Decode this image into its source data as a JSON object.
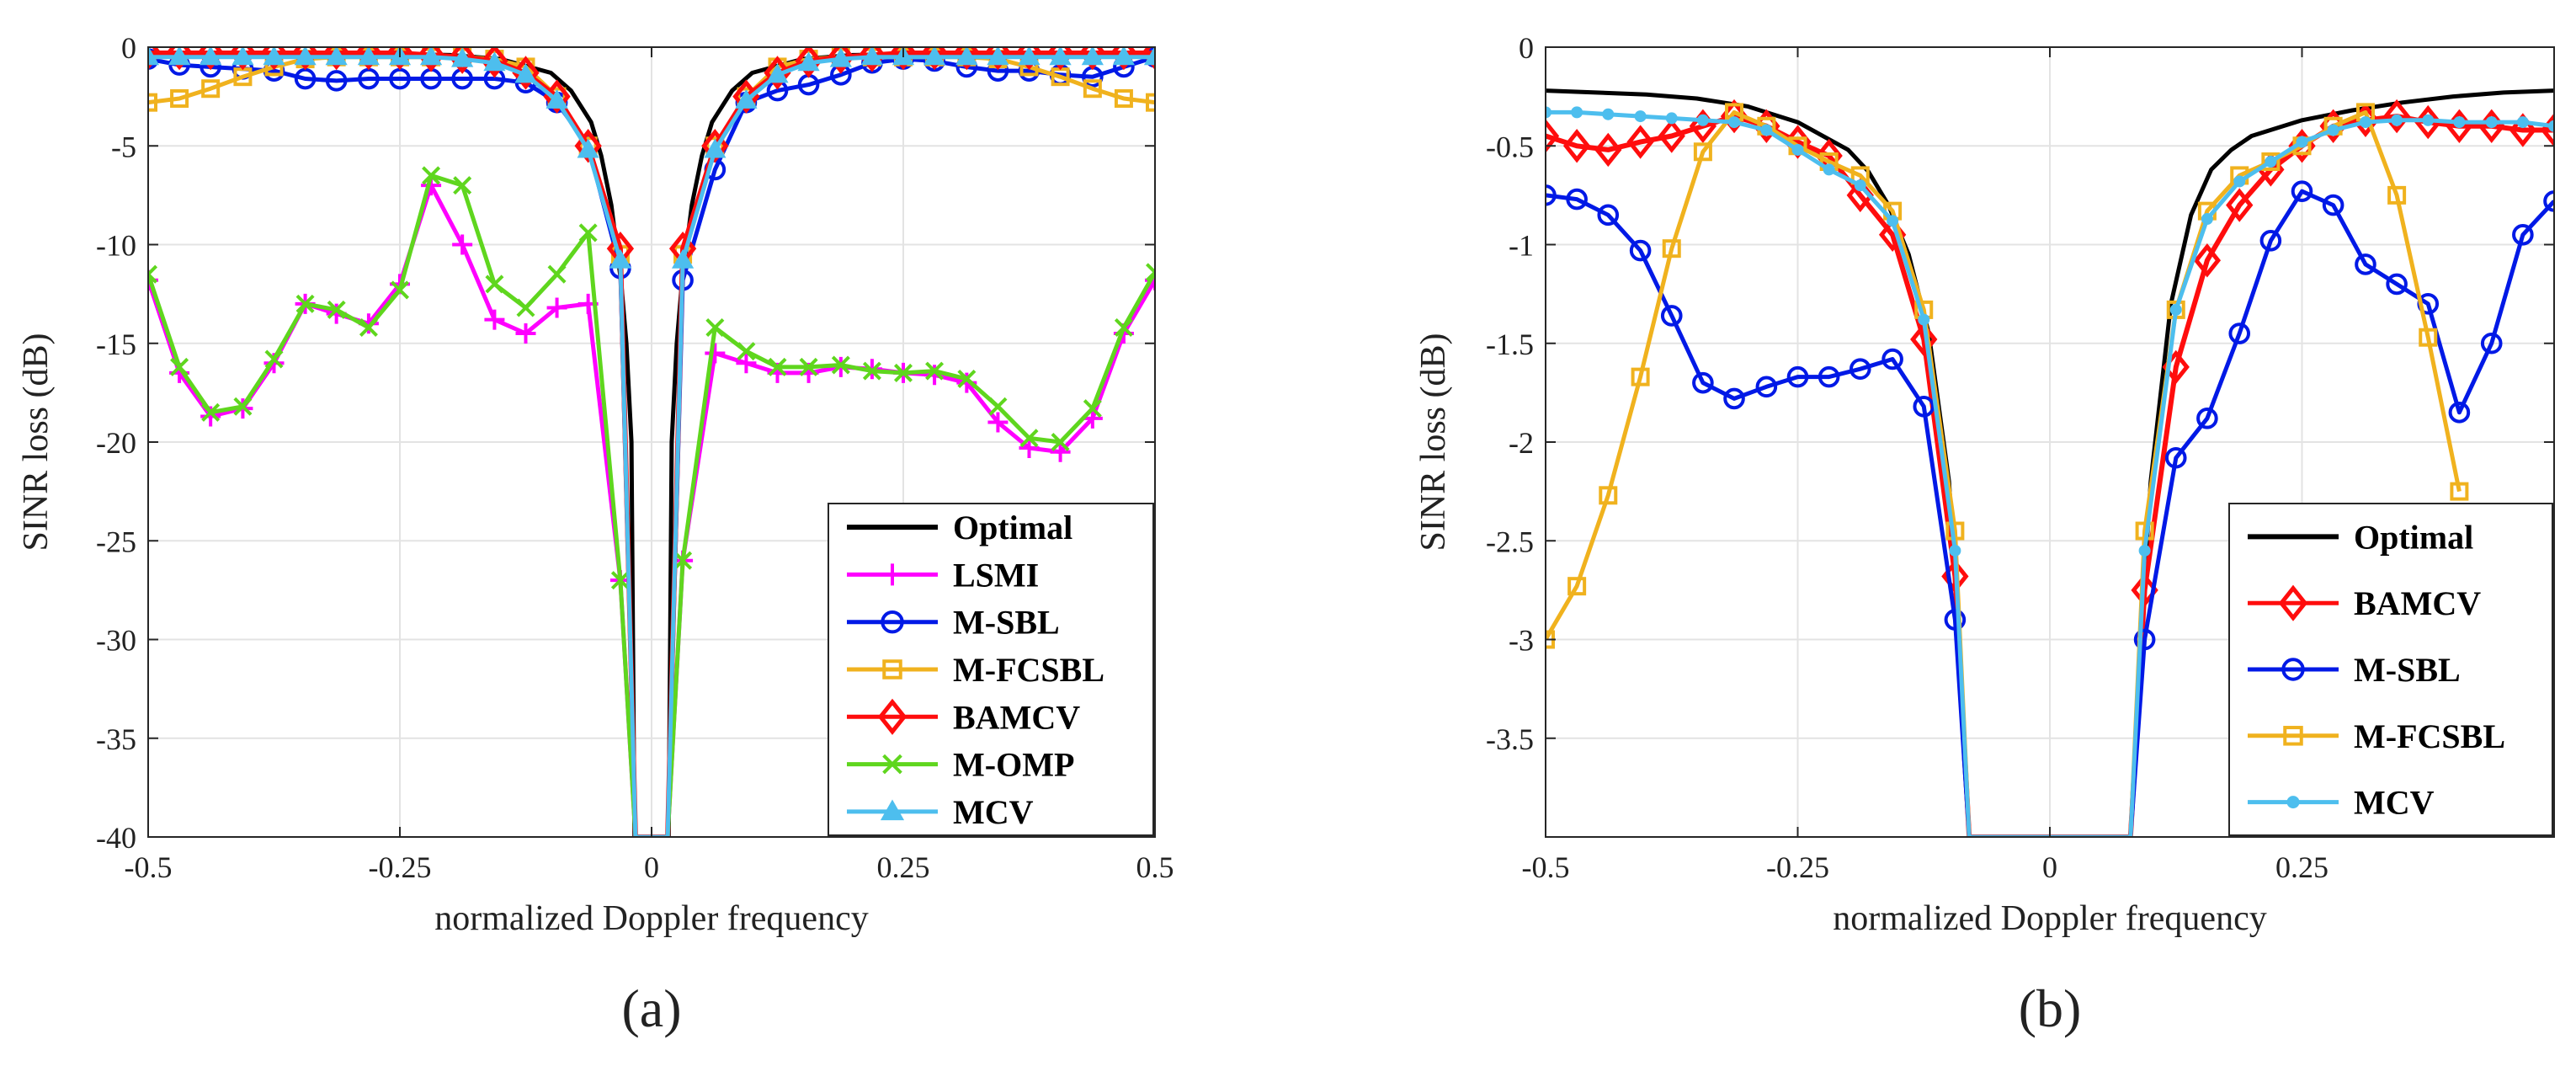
{
  "colors": {
    "Optimal": "#000000",
    "LSMI": "#ff00ff",
    "M-SBL": "#0019e6",
    "M-FCSBL": "#f0b21e",
    "BAMCV": "#ff0d0d",
    "M-OMP": "#5fd61e",
    "MCV": "#4dbeee"
  },
  "markers": {
    "Optimal": "none",
    "LSMI": "plus",
    "M-SBL": "circle",
    "M-FCSBL": "square",
    "BAMCV": "diamond",
    "M-OMP": "x",
    "MCV": "triangle"
  },
  "chart_data": [
    {
      "type": "line",
      "subfigure_label": "(a)",
      "xlabel": "normalized Doppler frequency",
      "ylabel": "SINR loss (dB)",
      "xlim": [
        -0.5,
        0.5
      ],
      "ylim": [
        -40,
        0
      ],
      "xticks": [
        -0.5,
        -0.25,
        0,
        0.25,
        0.5
      ],
      "xtick_labels": [
        "-0.5",
        "-0.25",
        "0",
        "0.25",
        "0.5"
      ],
      "yticks": [
        0,
        -5,
        -10,
        -15,
        -20,
        -25,
        -30,
        -35,
        -40
      ],
      "ytick_labels": [
        "0",
        "-5",
        "-10",
        "-15",
        "-20",
        "-25",
        "-30",
        "-35",
        "-40"
      ],
      "grid": true,
      "legend_position": "bottom-right",
      "legend": [
        "Optimal",
        "LSMI",
        "M-SBL",
        "M-FCSBL",
        "BAMCV",
        "M-OMP",
        "MCV"
      ],
      "series": [
        {
          "name": "Optimal",
          "x": [
            -0.5,
            -0.45,
            -0.4,
            -0.35,
            -0.3,
            -0.25,
            -0.2,
            -0.15,
            -0.1,
            -0.08,
            -0.06,
            -0.05,
            -0.04,
            -0.03,
            -0.025,
            -0.02,
            -0.017,
            0.017,
            0.02,
            0.025,
            0.03,
            0.04,
            0.05,
            0.06,
            0.08,
            0.1,
            0.15,
            0.2,
            0.25,
            0.3,
            0.35,
            0.4,
            0.45,
            0.5
          ],
          "y": [
            -0.3,
            -0.3,
            -0.3,
            -0.3,
            -0.3,
            -0.35,
            -0.4,
            -0.6,
            -1.3,
            -2.2,
            -3.8,
            -5.5,
            -8,
            -12,
            -15,
            -20,
            -40,
            -40,
            -20,
            -15,
            -12,
            -8,
            -5.5,
            -3.8,
            -2.2,
            -1.3,
            -0.6,
            -0.4,
            -0.35,
            -0.3,
            -0.3,
            -0.3,
            -0.3,
            -0.3
          ]
        },
        {
          "name": "LSMI",
          "x": [
            -0.5,
            -0.469,
            -0.438,
            -0.406,
            -0.375,
            -0.344,
            -0.313,
            -0.281,
            -0.25,
            -0.219,
            -0.188,
            -0.156,
            -0.125,
            -0.094,
            -0.063,
            -0.031,
            -0.016,
            0.016,
            0.031,
            0.063,
            0.094,
            0.125,
            0.156,
            0.188,
            0.219,
            0.25,
            0.281,
            0.313,
            0.344,
            0.375,
            0.406,
            0.438,
            0.469,
            0.5
          ],
          "y": [
            -11.8,
            -16.5,
            -18.7,
            -18.3,
            -16,
            -13,
            -13.5,
            -14,
            -12,
            -7,
            -10,
            -13.8,
            -14.5,
            -13.2,
            -13,
            -27,
            -40,
            -40,
            -26,
            -15.5,
            -16,
            -16.5,
            -16.5,
            -16.2,
            -16.3,
            -16.5,
            -16.6,
            -17,
            -19,
            -20.3,
            -20.5,
            -18.8,
            -14.5,
            -11.8
          ]
        },
        {
          "name": "M-SBL",
          "x": [
            -0.5,
            -0.469,
            -0.438,
            -0.406,
            -0.375,
            -0.344,
            -0.313,
            -0.281,
            -0.25,
            -0.219,
            -0.188,
            -0.156,
            -0.125,
            -0.094,
            -0.063,
            -0.031,
            -0.016,
            0.016,
            0.031,
            0.063,
            0.094,
            0.125,
            0.156,
            0.188,
            0.219,
            0.25,
            0.281,
            0.313,
            0.344,
            0.375,
            0.406,
            0.438,
            0.469,
            0.5
          ],
          "y": [
            -0.6,
            -0.9,
            -1,
            -1.1,
            -1.2,
            -1.6,
            -1.7,
            -1.6,
            -1.6,
            -1.6,
            -1.6,
            -1.6,
            -1.8,
            -2.8,
            -5,
            -11.2,
            -40,
            -40,
            -11.8,
            -6.2,
            -2.8,
            -2.2,
            -1.9,
            -1.4,
            -0.8,
            -0.6,
            -0.7,
            -1,
            -1.2,
            -1.2,
            -1.4,
            -1.5,
            -1,
            -0.5
          ]
        },
        {
          "name": "M-FCSBL",
          "x": [
            -0.5,
            -0.469,
            -0.438,
            -0.406,
            -0.375,
            -0.344,
            -0.313,
            -0.281,
            -0.25,
            -0.219,
            -0.188,
            -0.156,
            -0.125,
            -0.094,
            -0.063,
            -0.031,
            -0.016,
            0.016,
            0.031,
            0.063,
            0.094,
            0.125,
            0.156,
            0.188,
            0.219,
            0.25,
            0.281,
            0.313,
            0.344,
            0.375,
            0.406,
            0.438,
            0.469,
            0.5
          ],
          "y": [
            -2.8,
            -2.6,
            -2.1,
            -1.5,
            -1,
            -0.6,
            -0.5,
            -0.5,
            -0.5,
            -0.5,
            -0.5,
            -0.6,
            -1,
            -2.5,
            -5,
            -10.5,
            -40,
            -40,
            -10.5,
            -5,
            -2.5,
            -1,
            -0.6,
            -0.5,
            -0.5,
            -0.5,
            -0.5,
            -0.5,
            -0.6,
            -1,
            -1.5,
            -2.1,
            -2.6,
            -2.8
          ]
        },
        {
          "name": "BAMCV",
          "x": [
            -0.5,
            -0.469,
            -0.438,
            -0.406,
            -0.375,
            -0.344,
            -0.313,
            -0.281,
            -0.25,
            -0.219,
            -0.188,
            -0.156,
            -0.125,
            -0.094,
            -0.063,
            -0.031,
            -0.016,
            0.016,
            0.031,
            0.063,
            0.094,
            0.125,
            0.156,
            0.188,
            0.219,
            0.25,
            0.281,
            0.313,
            0.344,
            0.375,
            0.406,
            0.438,
            0.469,
            0.5
          ],
          "y": [
            -0.3,
            -0.3,
            -0.3,
            -0.3,
            -0.3,
            -0.3,
            -0.3,
            -0.3,
            -0.3,
            -0.4,
            -0.5,
            -0.7,
            -1.3,
            -2.5,
            -5,
            -10.2,
            -40,
            -40,
            -10.2,
            -5,
            -2.5,
            -1.3,
            -0.7,
            -0.5,
            -0.4,
            -0.3,
            -0.3,
            -0.3,
            -0.3,
            -0.3,
            -0.3,
            -0.3,
            -0.3,
            -0.3
          ]
        },
        {
          "name": "M-OMP",
          "x": [
            -0.5,
            -0.469,
            -0.438,
            -0.406,
            -0.375,
            -0.344,
            -0.313,
            -0.281,
            -0.25,
            -0.219,
            -0.188,
            -0.156,
            -0.125,
            -0.094,
            -0.063,
            -0.031,
            -0.016,
            0.016,
            0.031,
            0.063,
            0.094,
            0.125,
            0.156,
            0.188,
            0.219,
            0.25,
            0.281,
            0.313,
            0.344,
            0.375,
            0.406,
            0.438,
            0.469,
            0.5
          ],
          "y": [
            -11.5,
            -16.2,
            -18.5,
            -18.2,
            -15.8,
            -13,
            -13.3,
            -14.2,
            -12.3,
            -6.5,
            -7,
            -12,
            -13.2,
            -11.5,
            -9.4,
            -27,
            -40,
            -40,
            -26,
            -14.2,
            -15.4,
            -16.2,
            -16.2,
            -16.1,
            -16.4,
            -16.5,
            -16.4,
            -16.8,
            -18.2,
            -19.8,
            -20,
            -18.3,
            -14.2,
            -11.4
          ]
        },
        {
          "name": "MCV",
          "x": [
            -0.5,
            -0.469,
            -0.438,
            -0.406,
            -0.375,
            -0.344,
            -0.313,
            -0.281,
            -0.25,
            -0.219,
            -0.188,
            -0.156,
            -0.125,
            -0.094,
            -0.063,
            -0.031,
            -0.016,
            0.016,
            0.031,
            0.063,
            0.094,
            0.125,
            0.156,
            0.188,
            0.219,
            0.25,
            0.281,
            0.313,
            0.344,
            0.375,
            0.406,
            0.438,
            0.469,
            0.5
          ],
          "y": [
            -0.5,
            -0.5,
            -0.5,
            -0.5,
            -0.5,
            -0.5,
            -0.5,
            -0.5,
            -0.5,
            -0.5,
            -0.6,
            -0.8,
            -1.4,
            -2.7,
            -5.2,
            -10.8,
            -40,
            -40,
            -10.8,
            -5.2,
            -2.7,
            -1.4,
            -0.8,
            -0.6,
            -0.5,
            -0.5,
            -0.5,
            -0.5,
            -0.5,
            -0.5,
            -0.5,
            -0.5,
            -0.5,
            -0.5
          ]
        }
      ]
    },
    {
      "type": "line",
      "subfigure_label": "(b)",
      "xlabel": "normalized Doppler frequency",
      "ylabel": "SINR loss (dB)",
      "xlim": [
        -0.5,
        0.5
      ],
      "ylim": [
        -4,
        0
      ],
      "xticks": [
        -0.5,
        -0.25,
        0,
        0.25
      ],
      "xtick_labels": [
        "-0.5",
        "-0.25",
        "0",
        "0.25"
      ],
      "yticks": [
        0,
        -0.5,
        -1,
        -1.5,
        -2,
        -2.5,
        -3,
        -3.5
      ],
      "ytick_labels": [
        "0",
        "-0.5",
        "-1",
        "-1.5",
        "-2",
        "-2.5",
        "-3",
        "-3.5"
      ],
      "grid": true,
      "legend_position": "bottom-right",
      "legend": [
        "Optimal",
        "BAMCV",
        "M-SBL",
        "M-FCSBL",
        "MCV"
      ],
      "series": [
        {
          "name": "Optimal",
          "x": [
            -0.5,
            -0.45,
            -0.4,
            -0.35,
            -0.3,
            -0.25,
            -0.2,
            -0.18,
            -0.16,
            -0.14,
            -0.12,
            -0.1,
            -0.09,
            -0.085,
            -0.08,
            0.08,
            0.085,
            0.09,
            0.1,
            0.12,
            0.14,
            0.16,
            0.18,
            0.2,
            0.25,
            0.3,
            0.35,
            0.4,
            0.45,
            0.5
          ],
          "y": [
            -0.22,
            -0.23,
            -0.24,
            -0.26,
            -0.3,
            -0.38,
            -0.52,
            -0.63,
            -0.8,
            -1.05,
            -1.45,
            -2.2,
            -3,
            -3.6,
            -4,
            -4,
            -3.6,
            -3,
            -2.2,
            -1.3,
            -0.85,
            -0.62,
            -0.52,
            -0.45,
            -0.37,
            -0.32,
            -0.28,
            -0.25,
            -0.23,
            -0.22
          ]
        },
        {
          "name": "BAMCV",
          "x": [
            -0.5,
            -0.469,
            -0.438,
            -0.406,
            -0.375,
            -0.344,
            -0.313,
            -0.281,
            -0.25,
            -0.219,
            -0.188,
            -0.156,
            -0.125,
            -0.094,
            -0.08,
            0.08,
            0.094,
            0.125,
            0.156,
            0.188,
            0.219,
            0.25,
            0.281,
            0.313,
            0.344,
            0.375,
            0.406,
            0.438,
            0.469,
            0.5
          ],
          "y": [
            -0.45,
            -0.5,
            -0.52,
            -0.48,
            -0.45,
            -0.4,
            -0.35,
            -0.4,
            -0.48,
            -0.55,
            -0.75,
            -0.95,
            -1.48,
            -2.68,
            -4,
            -4,
            -2.75,
            -1.62,
            -1.08,
            -0.8,
            -0.62,
            -0.5,
            -0.4,
            -0.37,
            -0.35,
            -0.38,
            -0.4,
            -0.4,
            -0.42,
            -0.42
          ]
        },
        {
          "name": "M-SBL",
          "x": [
            -0.5,
            -0.469,
            -0.438,
            -0.406,
            -0.375,
            -0.344,
            -0.313,
            -0.281,
            -0.25,
            -0.219,
            -0.188,
            -0.156,
            -0.125,
            -0.094,
            -0.08,
            0.08,
            0.094,
            0.125,
            0.156,
            0.188,
            0.219,
            0.25,
            0.281,
            0.313,
            0.344,
            0.375,
            0.406,
            0.438,
            0.469,
            0.5
          ],
          "y": [
            -0.75,
            -0.77,
            -0.85,
            -1.03,
            -1.36,
            -1.7,
            -1.78,
            -1.72,
            -1.67,
            -1.67,
            -1.63,
            -1.58,
            -1.82,
            -2.9,
            -4,
            -4,
            -3,
            -2.08,
            -1.88,
            -1.45,
            -0.98,
            -0.73,
            -0.8,
            -1.1,
            -1.2,
            -1.3,
            -1.85,
            -1.5,
            -0.95,
            -0.78
          ]
        },
        {
          "name": "M-FCSBL",
          "x": [
            -0.5,
            -0.469,
            -0.438,
            -0.406,
            -0.375,
            -0.344,
            -0.313,
            -0.281,
            -0.25,
            -0.219,
            -0.188,
            -0.156,
            -0.125,
            -0.094,
            -0.08,
            0.08,
            0.094,
            0.125,
            0.156,
            0.188,
            0.219,
            0.25,
            0.281,
            0.313,
            0.344,
            0.375,
            0.406
          ],
          "y": [
            -3,
            -2.73,
            -2.27,
            -1.67,
            -1.02,
            -0.53,
            -0.33,
            -0.4,
            -0.5,
            -0.58,
            -0.65,
            -0.83,
            -1.33,
            -2.45,
            -4,
            -4,
            -2.45,
            -1.33,
            -0.83,
            -0.65,
            -0.58,
            -0.5,
            -0.4,
            -0.33,
            -0.75,
            -1.47,
            -2.25
          ]
        },
        {
          "name": "MCV",
          "x": [
            -0.5,
            -0.469,
            -0.438,
            -0.406,
            -0.375,
            -0.344,
            -0.313,
            -0.281,
            -0.25,
            -0.219,
            -0.188,
            -0.156,
            -0.125,
            -0.094,
            -0.08,
            0.08,
            0.094,
            0.125,
            0.156,
            0.188,
            0.219,
            0.25,
            0.281,
            0.313,
            0.344,
            0.375,
            0.406,
            0.438,
            0.469,
            0.5
          ],
          "y": [
            -0.33,
            -0.33,
            -0.34,
            -0.35,
            -0.36,
            -0.37,
            -0.38,
            -0.42,
            -0.52,
            -0.62,
            -0.7,
            -0.88,
            -1.38,
            -2.55,
            -4,
            -4,
            -2.55,
            -1.33,
            -0.87,
            -0.68,
            -0.58,
            -0.48,
            -0.42,
            -0.38,
            -0.37,
            -0.37,
            -0.38,
            -0.38,
            -0.38,
            -0.4
          ]
        }
      ]
    }
  ]
}
